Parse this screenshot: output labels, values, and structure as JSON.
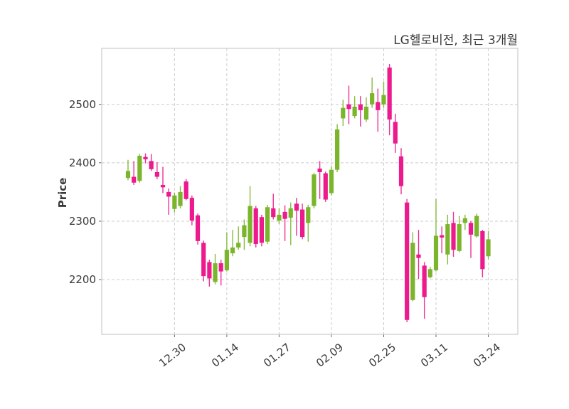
{
  "header": {
    "title": "LG헬로비전, 최근 3개월"
  },
  "chart_data": {
    "type": "candlestick",
    "title": "LG헬로비전, 최근 3개월",
    "ylabel": "Price",
    "xlabel": "",
    "grid": true,
    "ylim": [
      2106,
      2596
    ],
    "yticks": [
      2200,
      2300,
      2400,
      2500
    ],
    "xticks": [
      {
        "label": "12.30",
        "index": 9
      },
      {
        "label": "01.14",
        "index": 18
      },
      {
        "label": "01.27",
        "index": 27
      },
      {
        "label": "02.09",
        "index": 36
      },
      {
        "label": "02.25",
        "index": 45
      },
      {
        "label": "03.11",
        "index": 54
      },
      {
        "label": "03.24",
        "index": 63
      }
    ],
    "up_color": "#7ab52b",
    "down_color": "#ec1a8c",
    "grid_color": "#cccccc",
    "spine_color": "#cfcfcf",
    "text_color": "#3a3a3a",
    "candles_format": [
      "open",
      "high",
      "low",
      "close"
    ],
    "candles": [
      [
        2374,
        2405,
        2370,
        2386
      ],
      [
        2376,
        2403,
        2362,
        2366
      ],
      [
        2369,
        2415,
        2366,
        2412
      ],
      [
        2410,
        2416,
        2399,
        2406
      ],
      [
        2403,
        2415,
        2386,
        2389
      ],
      [
        2384,
        2401,
        2372,
        2376
      ],
      [
        2362,
        2393,
        2348,
        2358
      ],
      [
        2350,
        2356,
        2311,
        2342
      ],
      [
        2321,
        2349,
        2315,
        2344
      ],
      [
        2326,
        2360,
        2322,
        2350
      ],
      [
        2368,
        2372,
        2336,
        2338
      ],
      [
        2340,
        2344,
        2293,
        2301
      ],
      [
        2310,
        2313,
        2260,
        2266
      ],
      [
        2263,
        2267,
        2197,
        2206
      ],
      [
        2230,
        2234,
        2188,
        2202
      ],
      [
        2196,
        2244,
        2192,
        2228
      ],
      [
        2228,
        2234,
        2190,
        2214
      ],
      [
        2216,
        2281,
        2214,
        2251
      ],
      [
        2245,
        2285,
        2240,
        2255
      ],
      [
        2255,
        2291,
        2251,
        2263
      ],
      [
        2273,
        2303,
        2251,
        2293
      ],
      [
        2263,
        2360,
        2257,
        2326
      ],
      [
        2322,
        2326,
        2255,
        2261
      ],
      [
        2307,
        2311,
        2257,
        2263
      ],
      [
        2265,
        2328,
        2261,
        2324
      ],
      [
        2322,
        2347,
        2303,
        2307
      ],
      [
        2301,
        2322,
        2295,
        2311
      ],
      [
        2316,
        2327,
        2266,
        2304
      ],
      [
        2306,
        2332,
        2259,
        2322
      ],
      [
        2330,
        2340,
        2275,
        2318
      ],
      [
        2320,
        2330,
        2269,
        2273
      ],
      [
        2297,
        2328,
        2265,
        2324
      ],
      [
        2326,
        2383,
        2322,
        2380
      ],
      [
        2390,
        2403,
        2338,
        2384
      ],
      [
        2382,
        2385,
        2333,
        2337
      ],
      [
        2348,
        2394,
        2344,
        2388
      ],
      [
        2388,
        2466,
        2384,
        2457
      ],
      [
        2476,
        2508,
        2463,
        2494
      ],
      [
        2500,
        2532,
        2466,
        2492
      ],
      [
        2480,
        2514,
        2476,
        2496
      ],
      [
        2500,
        2514,
        2462,
        2490
      ],
      [
        2474,
        2512,
        2470,
        2496
      ],
      [
        2500,
        2546,
        2494,
        2519
      ],
      [
        2504,
        2527,
        2453,
        2490
      ],
      [
        2500,
        2539,
        2494,
        2516
      ],
      [
        2563,
        2569,
        2447,
        2474
      ],
      [
        2470,
        2484,
        2417,
        2433
      ],
      [
        2411,
        2425,
        2346,
        2360
      ],
      [
        2332,
        2338,
        2127,
        2131
      ],
      [
        2165,
        2281,
        2163,
        2263
      ],
      [
        2243,
        2285,
        2201,
        2237
      ],
      [
        2224,
        2230,
        2133,
        2170
      ],
      [
        2204,
        2222,
        2202,
        2218
      ],
      [
        2216,
        2338,
        2214,
        2275
      ],
      [
        2276,
        2291,
        2245,
        2272
      ],
      [
        2243,
        2311,
        2226,
        2295
      ],
      [
        2297,
        2316,
        2239,
        2251
      ],
      [
        2249,
        2309,
        2247,
        2295
      ],
      [
        2297,
        2311,
        2285,
        2305
      ],
      [
        2297,
        2300,
        2237,
        2277
      ],
      [
        2274,
        2313,
        2272,
        2309
      ],
      [
        2283,
        2285,
        2204,
        2218
      ],
      [
        2240,
        2283,
        2235,
        2269
      ]
    ]
  }
}
